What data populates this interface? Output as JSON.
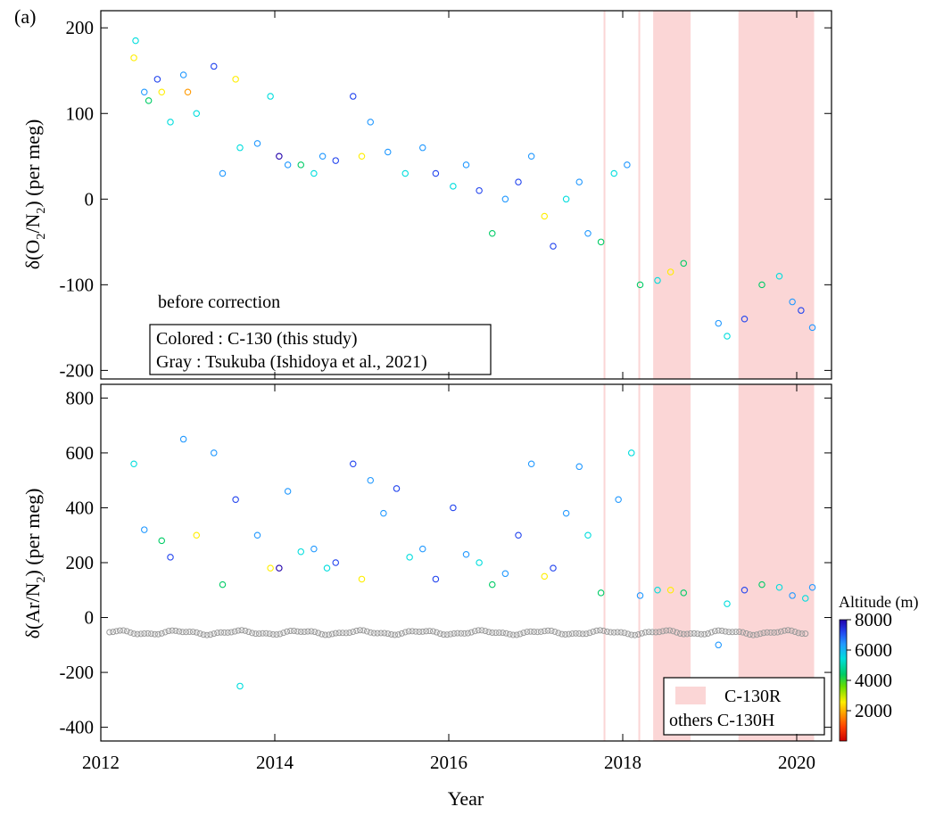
{
  "chart_data": {
    "type": "scatter",
    "panel_label": "(a)",
    "xlabel": "Year",
    "x_ticks": [
      2012,
      2014,
      2016,
      2018,
      2020
    ],
    "xlim": [
      2012.0,
      2020.4
    ],
    "shaded_periods": [
      {
        "from": 2017.78,
        "to": 2017.8
      },
      {
        "from": 2018.18,
        "to": 2018.2
      },
      {
        "from": 2018.35,
        "to": 2018.78
      },
      {
        "from": 2019.33,
        "to": 2020.2
      }
    ],
    "legend": {
      "shaded": "C-130R",
      "unshaded": "others  C-130H"
    },
    "colorbar": {
      "label": "Altitude  (m)",
      "ticks": [
        2000,
        4000,
        6000,
        8000
      ],
      "range": [
        0,
        8000
      ],
      "colors": [
        "#cc0000",
        "#ff4400",
        "#ff9900",
        "#ffee00",
        "#66dd00",
        "#00cc66",
        "#00dddd",
        "#2299ff",
        "#2244ee",
        "#2200aa"
      ]
    },
    "panels": [
      {
        "id": "o2n2",
        "ylabel": "δ(O2/N2)  (per meg)",
        "ylabel_main": "δ(O",
        "ylabel_sub1": "2",
        "ylabel_mid": "/N",
        "ylabel_sub2": "2",
        "ylabel_tail": ")  (per meg)",
        "ylim": [
          -210,
          220
        ],
        "y_ticks": [
          -200,
          -100,
          0,
          100,
          200
        ],
        "annotation": "before correction",
        "legend_lines": [
          "Colored :  C-130 (this study)",
          "Gray      : Tsukuba (Ishidoya et al., 2021)"
        ],
        "series": [
          {
            "name": "Colored :  C-130 (this study)",
            "points": [
              [
                2012.38,
                165,
                3000
              ],
              [
                2012.4,
                185,
                5000
              ],
              [
                2012.5,
                125,
                6000
              ],
              [
                2012.55,
                115,
                4000
              ],
              [
                2012.65,
                140,
                7000
              ],
              [
                2012.7,
                125,
                3000
              ],
              [
                2012.8,
                90,
                5000
              ],
              [
                2012.95,
                145,
                6000
              ],
              [
                2013.0,
                125,
                2000
              ],
              [
                2013.1,
                100,
                5000
              ],
              [
                2013.3,
                155,
                7000
              ],
              [
                2013.4,
                30,
                6000
              ],
              [
                2013.55,
                140,
                3000
              ],
              [
                2013.6,
                60,
                5000
              ],
              [
                2013.8,
                65,
                6000
              ],
              [
                2013.95,
                120,
                5000
              ],
              [
                2014.05,
                50,
                8000
              ],
              [
                2014.15,
                40,
                6000
              ],
              [
                2014.3,
                40,
                4000
              ],
              [
                2014.45,
                30,
                5000
              ],
              [
                2014.55,
                50,
                6000
              ],
              [
                2014.7,
                45,
                7000
              ],
              [
                2014.9,
                120,
                7500
              ],
              [
                2015.0,
                50,
                3000
              ],
              [
                2015.1,
                90,
                6000
              ],
              [
                2015.3,
                55,
                6500
              ],
              [
                2015.5,
                30,
                5000
              ],
              [
                2015.7,
                60,
                6000
              ],
              [
                2015.85,
                30,
                7000
              ],
              [
                2016.05,
                15,
                5000
              ],
              [
                2016.2,
                40,
                6000
              ],
              [
                2016.35,
                10,
                7000
              ],
              [
                2016.5,
                -40,
                4000
              ],
              [
                2016.65,
                0,
                6000
              ],
              [
                2016.8,
                20,
                7000
              ],
              [
                2016.95,
                50,
                6000
              ],
              [
                2017.1,
                -20,
                3000
              ],
              [
                2017.2,
                -55,
                7500
              ],
              [
                2017.35,
                0,
                5000
              ],
              [
                2017.5,
                20,
                6000
              ],
              [
                2017.6,
                -40,
                6000
              ],
              [
                2017.75,
                -50,
                4000
              ],
              [
                2017.9,
                30,
                5000
              ],
              [
                2018.05,
                40,
                6000
              ],
              [
                2018.2,
                -100,
                4000
              ],
              [
                2018.4,
                -95,
                5000
              ],
              [
                2018.55,
                -85,
                3000
              ],
              [
                2018.7,
                -75,
                4000
              ],
              [
                2019.1,
                -145,
                6000
              ],
              [
                2019.2,
                -160,
                5000
              ],
              [
                2019.4,
                -140,
                7000
              ],
              [
                2019.6,
                -100,
                4000
              ],
              [
                2019.8,
                -90,
                5000
              ],
              [
                2019.95,
                -120,
                6000
              ],
              [
                2020.05,
                -130,
                7000
              ],
              [
                2020.18,
                -150,
                6000
              ]
            ]
          },
          {
            "name": "Gray      : Tsukuba (Ishidoya et al., 2021)",
            "points": []
          }
        ]
      },
      {
        "id": "arn2",
        "ylabel": "δ(Ar/N2)  (per meg)",
        "ylabel_main": "δ(Ar/N",
        "ylabel_sub1": "2",
        "ylabel_mid": "",
        "ylabel_sub2": "",
        "ylabel_tail": ")  (per meg)",
        "ylim": [
          -450,
          850
        ],
        "y_ticks": [
          -400,
          -200,
          0,
          200,
          400,
          600,
          800
        ],
        "series": [
          {
            "name": "Colored :  C-130 (this study)",
            "points": [
              [
                2012.38,
                560,
                5000
              ],
              [
                2012.5,
                320,
                6000
              ],
              [
                2012.7,
                280,
                4000
              ],
              [
                2012.8,
                220,
                7000
              ],
              [
                2012.95,
                650,
                6000
              ],
              [
                2013.1,
                300,
                3000
              ],
              [
                2013.3,
                600,
                6000
              ],
              [
                2013.4,
                120,
                4000
              ],
              [
                2013.55,
                430,
                7000
              ],
              [
                2013.6,
                -250,
                5000
              ],
              [
                2013.8,
                300,
                6000
              ],
              [
                2013.95,
                180,
                3000
              ],
              [
                2014.05,
                180,
                8000
              ],
              [
                2014.15,
                460,
                6000
              ],
              [
                2014.3,
                240,
                5000
              ],
              [
                2014.45,
                250,
                6000
              ],
              [
                2014.6,
                180,
                5000
              ],
              [
                2014.7,
                200,
                7000
              ],
              [
                2014.9,
                560,
                7500
              ],
              [
                2015.0,
                140,
                3000
              ],
              [
                2015.1,
                500,
                6000
              ],
              [
                2015.25,
                380,
                6500
              ],
              [
                2015.4,
                470,
                7000
              ],
              [
                2015.55,
                220,
                5000
              ],
              [
                2015.7,
                250,
                6000
              ],
              [
                2015.85,
                140,
                7000
              ],
              [
                2016.05,
                400,
                7000
              ],
              [
                2016.2,
                230,
                6000
              ],
              [
                2016.35,
                200,
                5000
              ],
              [
                2016.5,
                120,
                4000
              ],
              [
                2016.65,
                160,
                6000
              ],
              [
                2016.8,
                300,
                7000
              ],
              [
                2016.95,
                560,
                6000
              ],
              [
                2017.1,
                150,
                3000
              ],
              [
                2017.2,
                180,
                7500
              ],
              [
                2017.35,
                380,
                6000
              ],
              [
                2017.5,
                550,
                6000
              ],
              [
                2017.6,
                300,
                5000
              ],
              [
                2017.75,
                90,
                4000
              ],
              [
                2017.95,
                430,
                6000
              ],
              [
                2018.1,
                600,
                5000
              ],
              [
                2018.2,
                80,
                6000
              ],
              [
                2018.4,
                100,
                5000
              ],
              [
                2018.55,
                100,
                3000
              ],
              [
                2018.7,
                90,
                4000
              ],
              [
                2019.1,
                -100,
                6000
              ],
              [
                2019.2,
                50,
                5000
              ],
              [
                2019.4,
                100,
                7000
              ],
              [
                2019.6,
                120,
                4000
              ],
              [
                2019.8,
                110,
                5000
              ],
              [
                2019.95,
                80,
                6000
              ],
              [
                2020.1,
                70,
                5000
              ],
              [
                2020.18,
                110,
                6000
              ]
            ]
          },
          {
            "name": "Gray      : Tsukuba (Ishidoya et al., 2021)",
            "x_range": [
              2012.1,
              2020.1
            ],
            "y_mean": -55
          }
        ]
      }
    ]
  }
}
